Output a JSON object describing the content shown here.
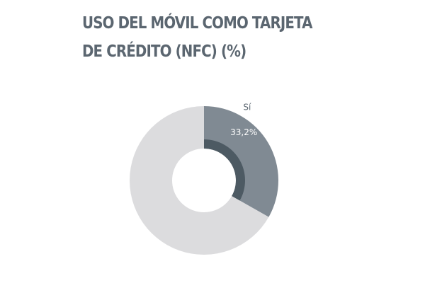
{
  "chart_data": {
    "type": "donut",
    "title": [
      "USO DEL MÓVIL COMO TARJETA",
      "DE CRÉDITO (NFC) (%)"
    ],
    "categories": [
      "Sí",
      null
    ],
    "values": [
      33.2,
      66.8
    ],
    "value_labels": [
      "33,2%",
      null
    ],
    "colors": [
      "#808a93",
      "#dcdcde"
    ],
    "accent_color": "#4d5a63"
  }
}
